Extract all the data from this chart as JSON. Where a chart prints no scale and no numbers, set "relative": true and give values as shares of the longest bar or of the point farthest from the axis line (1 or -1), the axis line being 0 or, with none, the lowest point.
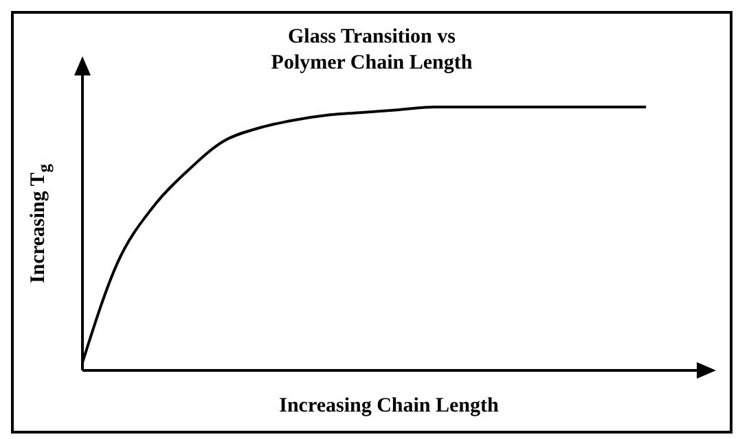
{
  "chart_data": {
    "type": "line",
    "title": "Glass Transition vs\nPolymer Chain Length",
    "xlabel": "Increasing Chain Length",
    "ylabel": "Increasing T$_{g}$",
    "relative": true,
    "categories": [
      null,
      null,
      null,
      null,
      null,
      null,
      null,
      null,
      null,
      null,
      null,
      null,
      null,
      null,
      null,
      null,
      null
    ],
    "series": [
      {
        "color": "#000000",
        "values": [
          0.03,
          0.41,
          0.62,
          0.76,
          0.87,
          0.92,
          0.95,
          0.97,
          0.98,
          0.99,
          1,
          1,
          1,
          1,
          1,
          1,
          1
        ]
      }
    ]
  }
}
